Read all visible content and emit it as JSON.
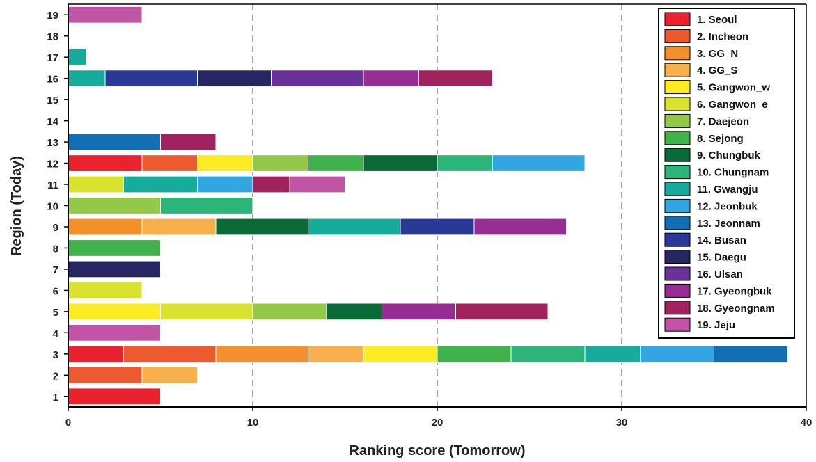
{
  "chart_data": {
    "type": "bar",
    "orientation": "horizontal",
    "stacked": true,
    "xlabel": "Ranking score (Tomorrow)",
    "ylabel": "Region (Today)",
    "xlim": [
      0,
      40
    ],
    "xticks": [
      0,
      10,
      20,
      30,
      40
    ],
    "xtick_labels": [
      "0",
      "10",
      "20",
      "30",
      "40"
    ],
    "categories": [
      "1",
      "2",
      "3",
      "4",
      "5",
      "6",
      "7",
      "8",
      "9",
      "10",
      "11",
      "12",
      "13",
      "14",
      "15",
      "16",
      "17",
      "18",
      "19"
    ],
    "grid": "vertical dashed at 10, 20, 30",
    "legend_position": "top-right",
    "series": [
      {
        "name": "1. Seoul",
        "color": "#e8222e",
        "values": [
          5,
          0,
          3,
          0,
          0,
          0,
          0,
          0,
          0,
          0,
          0,
          4,
          0,
          0,
          0,
          0,
          0,
          0,
          0
        ]
      },
      {
        "name": "2. Incheon",
        "color": "#ee5a2f",
        "values": [
          0,
          4,
          5,
          0,
          0,
          0,
          0,
          0,
          0,
          0,
          0,
          3,
          0,
          0,
          0,
          0,
          0,
          0,
          0
        ]
      },
      {
        "name": "3. GG_N",
        "color": "#f3902c",
        "values": [
          0,
          0,
          5,
          0,
          0,
          0,
          0,
          0,
          4,
          0,
          0,
          0,
          0,
          0,
          0,
          0,
          0,
          0,
          0
        ]
      },
      {
        "name": "4. GG_S",
        "color": "#f8b04c",
        "values": [
          0,
          3,
          3,
          0,
          0,
          0,
          0,
          0,
          4,
          0,
          0,
          0,
          0,
          0,
          0,
          0,
          0,
          0,
          0
        ]
      },
      {
        "name": "5. Gangwon_w",
        "color": "#fbec24",
        "values": [
          0,
          0,
          4,
          0,
          5,
          0,
          0,
          0,
          0,
          0,
          0,
          3,
          0,
          0,
          0,
          0,
          0,
          0,
          0
        ]
      },
      {
        "name": "6. Gangwon_e",
        "color": "#d9e22e",
        "values": [
          0,
          0,
          0,
          0,
          5,
          4,
          0,
          0,
          0,
          0,
          3,
          0,
          0,
          0,
          0,
          0,
          0,
          0,
          0
        ]
      },
      {
        "name": "7. Daejeon",
        "color": "#94c848",
        "values": [
          0,
          0,
          0,
          0,
          4,
          0,
          0,
          0,
          0,
          5,
          0,
          3,
          0,
          0,
          0,
          0,
          0,
          0,
          0
        ]
      },
      {
        "name": "8. Sejong",
        "color": "#3fb24b",
        "values": [
          0,
          0,
          4,
          0,
          0,
          0,
          0,
          5,
          0,
          0,
          0,
          3,
          0,
          0,
          0,
          0,
          0,
          0,
          0
        ]
      },
      {
        "name": "9. Chungbuk",
        "color": "#0a6b38",
        "values": [
          0,
          0,
          0,
          0,
          3,
          0,
          0,
          0,
          5,
          0,
          0,
          4,
          0,
          0,
          0,
          0,
          0,
          0,
          0
        ]
      },
      {
        "name": "10. Chungnam",
        "color": "#2bb57a",
        "values": [
          0,
          0,
          4,
          0,
          0,
          0,
          0,
          0,
          0,
          5,
          0,
          3,
          0,
          0,
          0,
          0,
          0,
          0,
          0
        ]
      },
      {
        "name": "11. Gwangju",
        "color": "#17ab9c",
        "values": [
          0,
          0,
          3,
          0,
          0,
          0,
          0,
          0,
          5,
          0,
          4,
          0,
          0,
          0,
          0,
          2,
          1,
          0,
          0
        ]
      },
      {
        "name": "12. Jeonbuk",
        "color": "#31a6e2",
        "values": [
          0,
          0,
          4,
          0,
          0,
          0,
          0,
          0,
          0,
          0,
          3,
          5,
          0,
          0,
          0,
          0,
          0,
          0,
          0
        ]
      },
      {
        "name": "13. Jeonnam",
        "color": "#136fb4",
        "values": [
          0,
          0,
          4,
          0,
          0,
          0,
          0,
          0,
          0,
          0,
          0,
          0,
          5,
          0,
          0,
          0,
          0,
          0,
          0
        ]
      },
      {
        "name": "14. Busan",
        "color": "#2a3896",
        "values": [
          0,
          0,
          0,
          0,
          0,
          0,
          0,
          0,
          4,
          0,
          0,
          0,
          0,
          0,
          0,
          5,
          0,
          0,
          0
        ]
      },
      {
        "name": "15. Daegu",
        "color": "#262662",
        "values": [
          0,
          0,
          0,
          0,
          0,
          0,
          5,
          0,
          0,
          0,
          0,
          0,
          0,
          0,
          0,
          4,
          0,
          0,
          0
        ]
      },
      {
        "name": "16. Ulsan",
        "color": "#6a3298",
        "values": [
          0,
          0,
          0,
          0,
          0,
          0,
          0,
          0,
          0,
          0,
          0,
          0,
          0,
          0,
          0,
          5,
          0,
          0,
          0
        ]
      },
      {
        "name": "17. Gyeongbuk",
        "color": "#952d93",
        "values": [
          0,
          0,
          0,
          0,
          4,
          0,
          0,
          0,
          5,
          0,
          0,
          0,
          0,
          0,
          0,
          3,
          0,
          0,
          0
        ]
      },
      {
        "name": "18. Gyeongnam",
        "color": "#a0235e",
        "values": [
          0,
          0,
          0,
          0,
          5,
          0,
          0,
          0,
          0,
          0,
          2,
          0,
          3,
          0,
          0,
          4,
          0,
          0,
          0
        ]
      },
      {
        "name": "19. Jeju",
        "color": "#c055a5",
        "values": [
          0,
          0,
          0,
          5,
          0,
          0,
          0,
          0,
          0,
          0,
          3,
          0,
          0,
          0,
          0,
          0,
          0,
          0,
          4
        ]
      }
    ]
  }
}
